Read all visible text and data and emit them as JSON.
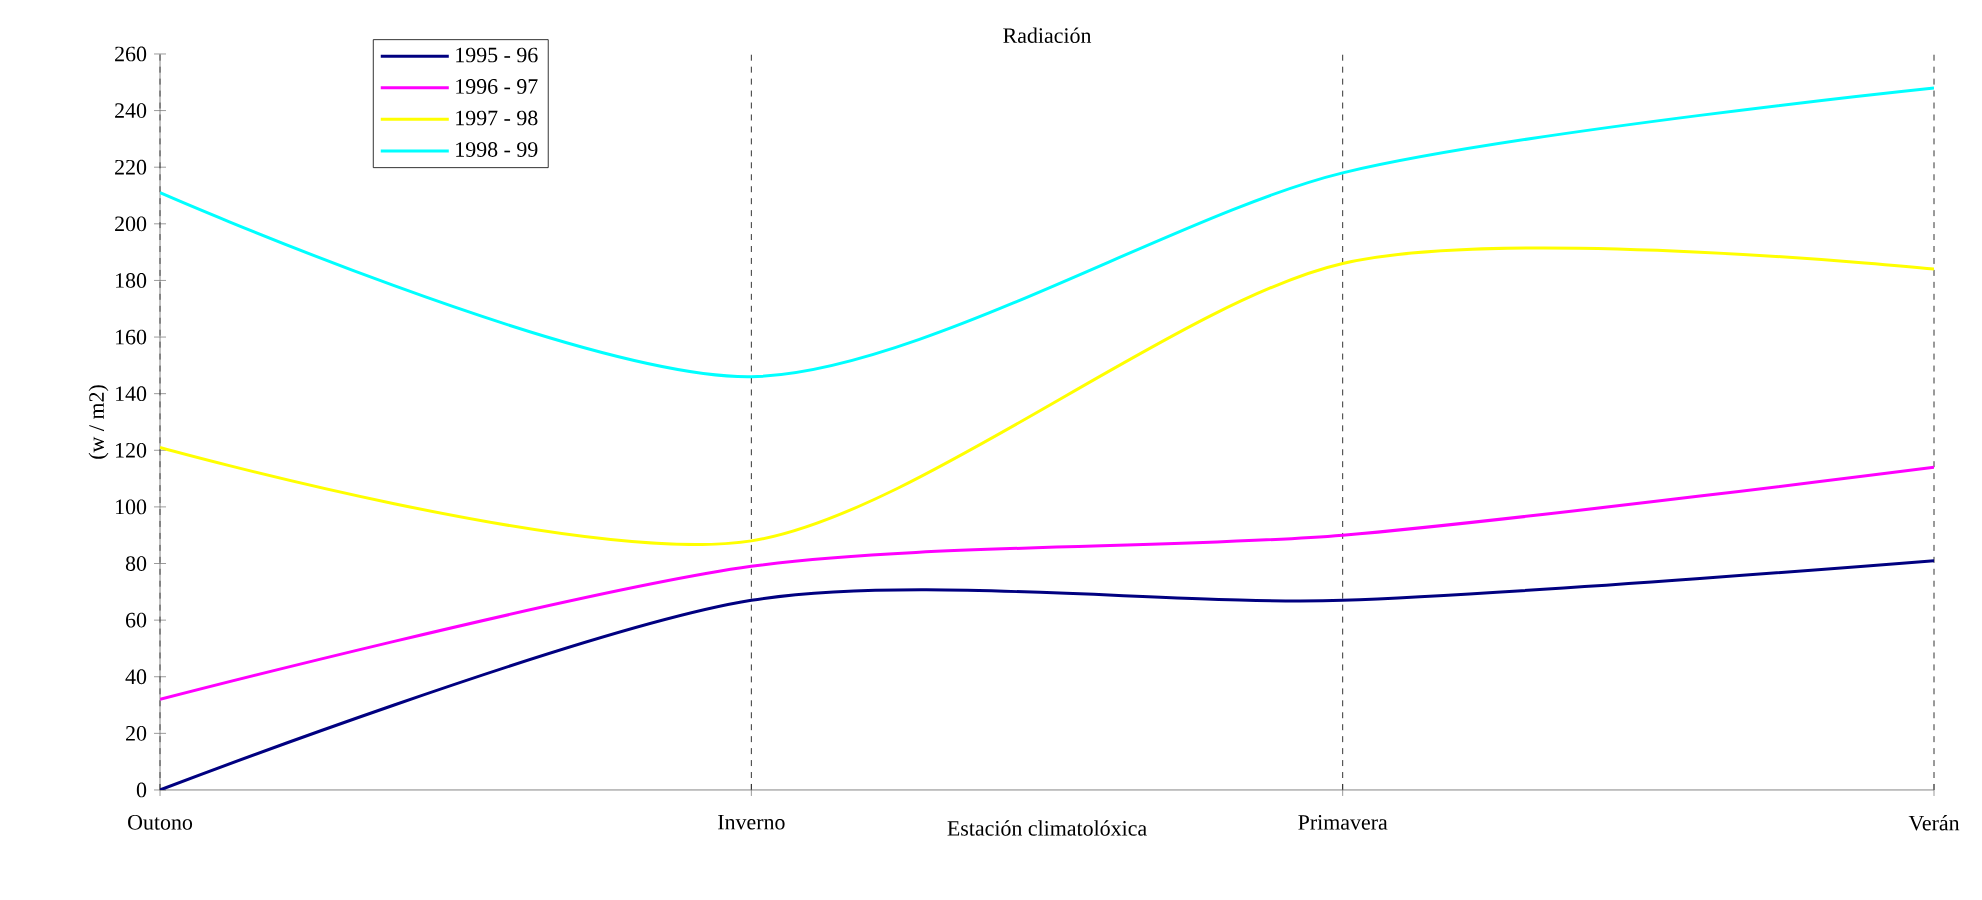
{
  "chart_data": {
    "type": "line",
    "title": "Radiación",
    "xlabel": "Estación climatolóxica",
    "ylabel": "(w / m2)",
    "categories": [
      "Outono",
      "Inverno",
      "Primavera",
      "Verán"
    ],
    "series": [
      {
        "name": "1995 - 96",
        "color": "#000080",
        "values": [
          0,
          67,
          67,
          81
        ]
      },
      {
        "name": "1996 - 97",
        "color": "#ff00ff",
        "values": [
          32,
          79,
          90,
          114
        ]
      },
      {
        "name": "1997 - 98",
        "color": "#ffff00",
        "values": [
          121,
          88,
          186,
          184
        ]
      },
      {
        "name": "1998 - 99",
        "color": "#00ffff",
        "values": [
          211,
          146,
          218,
          248
        ]
      }
    ],
    "ylim": [
      0,
      260
    ],
    "yticks": [
      0,
      20,
      40,
      60,
      80,
      100,
      120,
      140,
      160,
      180,
      200,
      220,
      240,
      260
    ],
    "grid": "x",
    "legend": "top left",
    "marker": "none",
    "line_style": "solid"
  }
}
